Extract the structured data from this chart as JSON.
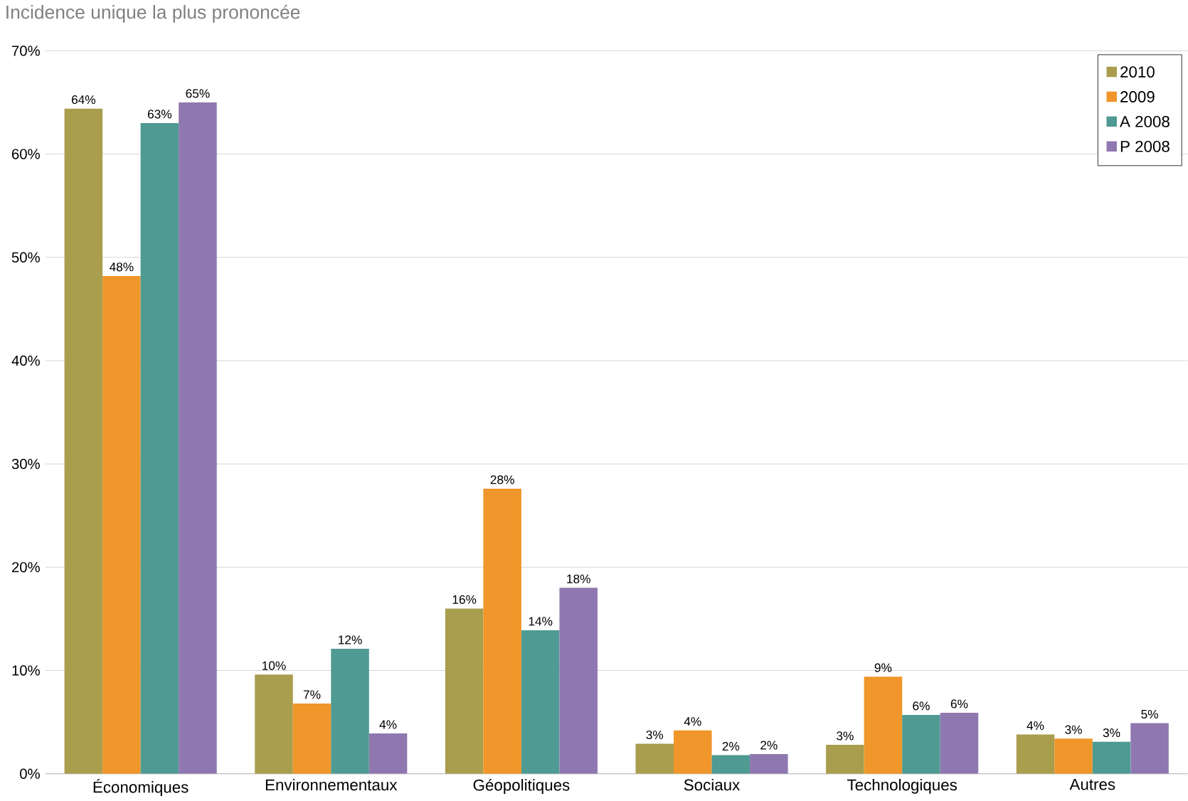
{
  "chart_data": {
    "type": "bar",
    "title": "Incidence unique la plus prononcée",
    "categories": [
      "Économiques",
      "Environnementaux",
      "Géopolitiques",
      "Sociaux",
      "Technologiques",
      "Autres"
    ],
    "series": [
      {
        "name": "2010",
        "color": "#a99d4e",
        "values": [
          64.4,
          9.6,
          16,
          2.9,
          2.8,
          3.8
        ],
        "value_labels": [
          "64%",
          "10%",
          "16%",
          "3%",
          "3%",
          "4%"
        ]
      },
      {
        "name": "2009",
        "color": "#f0962a",
        "values": [
          48.2,
          6.8,
          27.6,
          4.2,
          9.4,
          3.4
        ],
        "value_labels": [
          "48%",
          "7%",
          "28%",
          "4%",
          "9%",
          "3%"
        ]
      },
      {
        "name": "A 2008",
        "color": "#4f9a92",
        "values": [
          63,
          12.1,
          13.9,
          1.8,
          5.7,
          3.1
        ],
        "value_labels": [
          "63%",
          "12%",
          "14%",
          "2%",
          "6%",
          "3%"
        ]
      },
      {
        "name": "P 2008",
        "color": "#8f78b0",
        "values": [
          65,
          3.9,
          18,
          1.9,
          5.9,
          4.9
        ],
        "value_labels": [
          "65%",
          "4%",
          "18%",
          "2%",
          "6%",
          "5%"
        ]
      }
    ],
    "ylim": [
      0,
      70
    ],
    "yticks": [
      {
        "value": 0,
        "label": "0%"
      },
      {
        "value": 10,
        "label": "10%"
      },
      {
        "value": 20,
        "label": "20%"
      },
      {
        "value": 30,
        "label": "30%"
      },
      {
        "value": 40,
        "label": "40%"
      },
      {
        "value": 50,
        "label": "50%"
      },
      {
        "value": 60,
        "label": "60%"
      },
      {
        "value": 70,
        "label": "70%"
      }
    ],
    "grid": "y",
    "legend": "top right"
  }
}
